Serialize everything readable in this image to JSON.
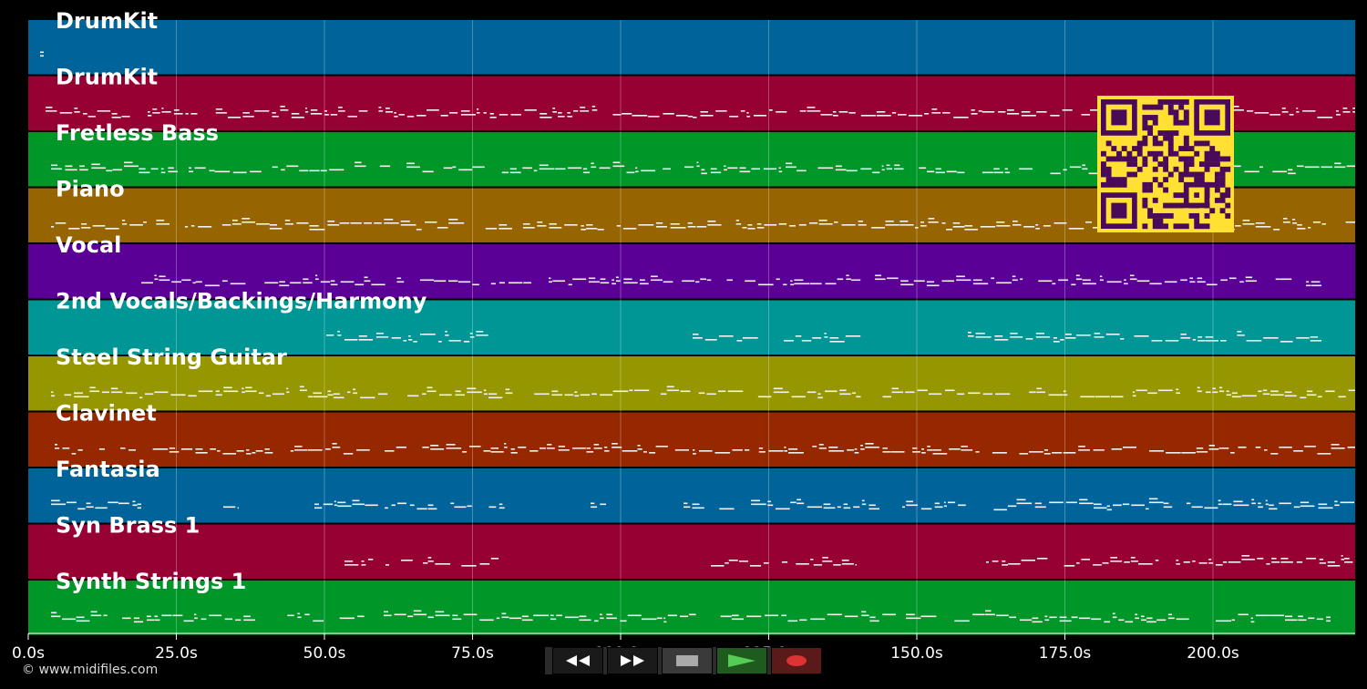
{
  "tracks": [
    {
      "name": "DrumKit",
      "color": "#00649a"
    },
    {
      "name": "DrumKit",
      "color": "#960032"
    },
    {
      "name": "Fretless Bass",
      "color": "#009628"
    },
    {
      "name": "Piano",
      "color": "#966400"
    },
    {
      "name": "Vocal",
      "color": "#5a0096"
    },
    {
      "name": "2nd Vocals/Backings/Harmony",
      "color": "#009696"
    },
    {
      "name": "Steel String Guitar",
      "color": "#969600"
    },
    {
      "name": "Clavinet",
      "color": "#962800"
    },
    {
      "name": "Fantasia",
      "color": "#00649a"
    },
    {
      "name": "Syn Brass 1",
      "color": "#960032"
    },
    {
      "name": "Synth Strings 1",
      "color": "#009628"
    }
  ],
  "time_axis": {
    "ticks": [
      "0.0s",
      "25.0s",
      "50.0s",
      "75.0s",
      "100.0s",
      "125.0s",
      "150.0s",
      "175.0s",
      "200.0s"
    ]
  },
  "qr_code": {
    "fg": "#4a0a5a",
    "bg": "#ffe033"
  },
  "transport": {
    "buttons": [
      {
        "name": "rewind-button",
        "icon": "rewind-icon",
        "color": "#1a1a1a"
      },
      {
        "name": "fast-forward-button",
        "icon": "fast-forward-icon",
        "color": "#1a1a1a"
      },
      {
        "name": "stop-button",
        "icon": "stop-icon",
        "color": "#3a3a3a"
      },
      {
        "name": "play-button",
        "icon": "play-icon",
        "color": "#1f5a1f"
      },
      {
        "name": "record-button",
        "icon": "record-icon",
        "color": "#5a1a1a"
      }
    ]
  },
  "footer": {
    "copyright": "© www.midifiles.com"
  }
}
